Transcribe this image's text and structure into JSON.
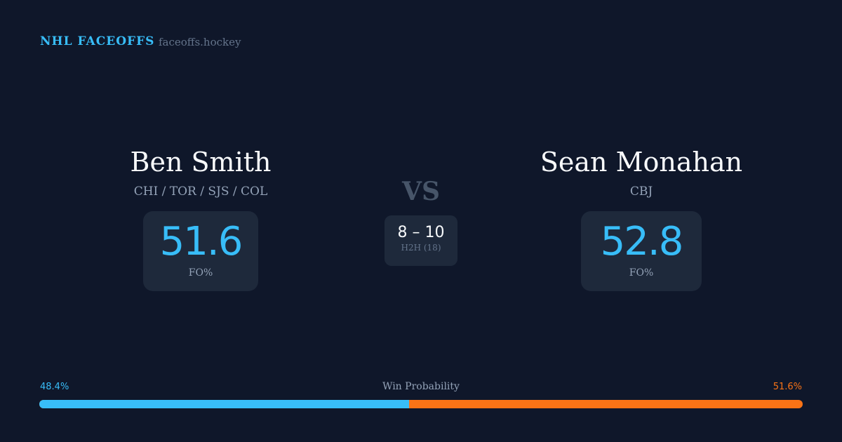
{
  "header": {
    "brand": "NHL FACEOFFS",
    "site": "faceoffs.hockey"
  },
  "player1": {
    "name": "Ben Smith",
    "teams": "CHI / TOR / SJS / COL",
    "fo_pct": "51.6",
    "fo_label": "FO%"
  },
  "player2": {
    "name": "Sean Monahan",
    "teams": "CBJ",
    "fo_pct": "52.8",
    "fo_label": "FO%"
  },
  "matchup": {
    "vs": "VS",
    "score": "8 – 10",
    "h2h_label": "H2H (18)"
  },
  "win_probability": {
    "label": "Win Probability",
    "left": "48.4%",
    "right": "51.6%",
    "left_value": 48.4,
    "left_color": "#38bdf8",
    "right_color": "#f97316"
  }
}
